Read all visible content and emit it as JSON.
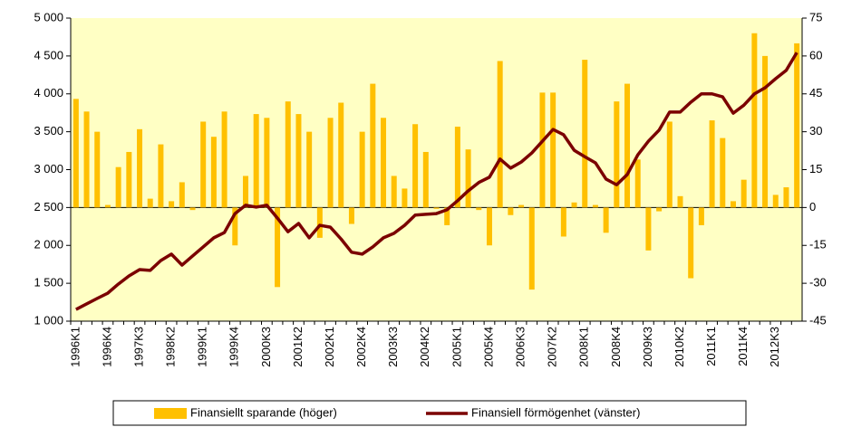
{
  "chart_data": {
    "type": "bar_line",
    "categories": [
      "1996K1",
      null,
      null,
      "1996K4",
      null,
      null,
      "1997K3",
      null,
      null,
      "1998K2",
      null,
      null,
      "1999K1",
      null,
      null,
      "1999K4",
      null,
      null,
      "2000K3",
      null,
      null,
      "2001K2",
      null,
      null,
      "2002K1",
      null,
      null,
      "2002K4",
      null,
      null,
      "2003K3",
      null,
      null,
      "2004K2",
      null,
      null,
      "2005K1",
      null,
      null,
      "2005K4",
      null,
      null,
      "2006K3",
      null,
      null,
      "2007K2",
      null,
      null,
      "2008K1",
      null,
      null,
      "2008K4",
      null,
      null,
      "2009K3",
      null,
      null,
      "2010K2",
      null,
      null,
      "2011K1",
      null,
      null,
      "2011K4",
      null,
      null,
      "2012K3",
      null,
      null
    ],
    "series": [
      {
        "name": "Finansiellt sparande (höger)",
        "type": "bar",
        "axis": "y2",
        "color": "#ffc000",
        "values": [
          43,
          38,
          30,
          1,
          16,
          22,
          31,
          3.5,
          25,
          2.5,
          10,
          -1,
          34,
          28,
          38,
          -15,
          12.5,
          37,
          35.5,
          -31.5,
          42,
          37,
          30,
          -12,
          35.5,
          41.5,
          -6.5,
          30,
          49,
          35.5,
          12.5,
          7.5,
          33,
          22,
          -0.5,
          -7,
          32,
          23,
          -1,
          -15,
          58,
          -3,
          1,
          -32.5,
          45.5,
          45.5,
          -11.5,
          2,
          58.5,
          1,
          -10,
          42,
          49,
          19,
          -17,
          -1.5,
          34,
          4.5,
          -28,
          -7,
          34.5,
          27.5,
          2.5,
          11,
          69,
          60,
          5,
          8,
          65
        ]
      },
      {
        "name": "Finansiell förmögenhet (vänster)",
        "type": "line",
        "axis": "y",
        "color": "#7b0000",
        "values": [
          1155,
          1227,
          1300,
          1370,
          1490,
          1597,
          1680,
          1670,
          1800,
          1885,
          1740,
          1860,
          1980,
          2100,
          2170,
          2420,
          2530,
          2505,
          2530,
          2360,
          2180,
          2290,
          2100,
          2265,
          2240,
          2085,
          1910,
          1885,
          1980,
          2100,
          2160,
          2265,
          2400,
          2410,
          2420,
          2470,
          2590,
          2720,
          2830,
          2900,
          3140,
          3020,
          3100,
          3220,
          3375,
          3530,
          3460,
          3255,
          3170,
          3090,
          2875,
          2800,
          2935,
          3195,
          3375,
          3520,
          3760,
          3760,
          3890,
          4000,
          4000,
          3960,
          3745,
          3850,
          4000,
          4080,
          4200,
          4310,
          4545
        ]
      }
    ],
    "ylim": [
      1000,
      5000
    ],
    "yticks": [
      {
        "value": 1000,
        "label": "1 000"
      },
      {
        "value": 1500,
        "label": "1 500"
      },
      {
        "value": 2000,
        "label": "2 000"
      },
      {
        "value": 2500,
        "label": "2 500"
      },
      {
        "value": 3000,
        "label": "3 000"
      },
      {
        "value": 3500,
        "label": "3 500"
      },
      {
        "value": 4000,
        "label": "4 000"
      },
      {
        "value": 4500,
        "label": "4 500"
      },
      {
        "value": 5000,
        "label": "5 000"
      }
    ],
    "y2lim": [
      -45,
      75
    ],
    "y2ticks": [
      -45,
      -30,
      -15,
      0,
      15,
      30,
      45,
      60,
      75
    ],
    "grid": false,
    "legend": "bottom",
    "background": "#ffffc4"
  }
}
